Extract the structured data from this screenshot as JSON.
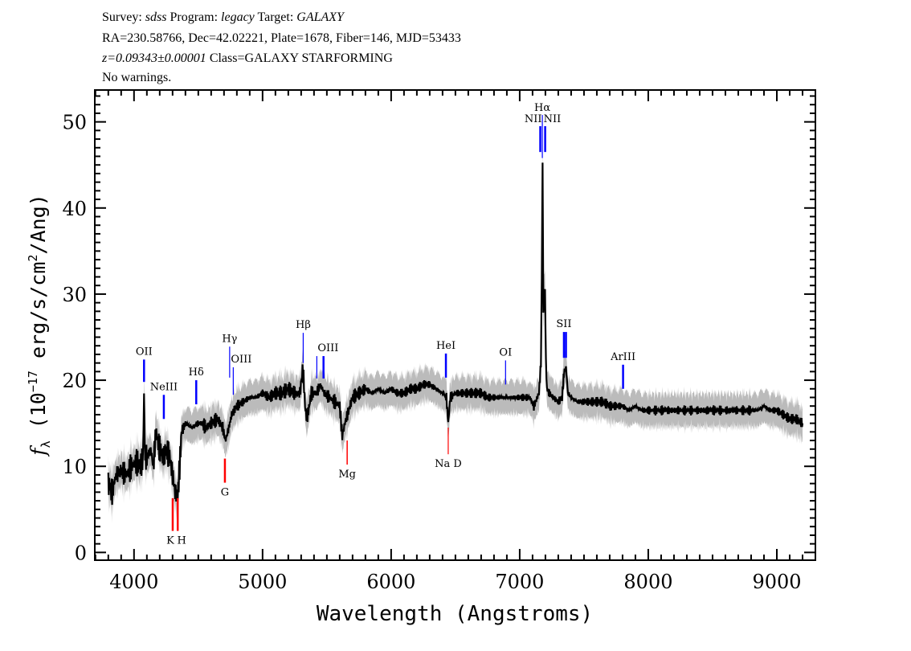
{
  "header": {
    "line1": {
      "a": "Survey: ",
      "b": "sdss",
      "c": " Program: ",
      "d": "legacy",
      "e": " Target: ",
      "f": "GALAXY"
    },
    "line2": "RA=230.58766, Dec=42.02221, Plate=1678, Fiber=146, MJD=53433",
    "line3": {
      "a": "z=0.09343±0.00001",
      "b": " Class=GALAXY STARFORMING"
    },
    "line4": "No warnings."
  },
  "chart_data": {
    "type": "line",
    "xlabel": "Wavelength (Angstroms)",
    "ylabel": "f_λ (10^-17 erg/s/cm^2/Ang)",
    "ylabel_parts": {
      "f": "f",
      "sub": "λ",
      "a": " (10",
      "exp1": "−17",
      "b": " erg/s/cm",
      "exp2": "2",
      "c": "/Ang)"
    },
    "xlim": [
      3695,
      9300
    ],
    "ylim": [
      -0.9,
      53.7
    ],
    "xticks": [
      4000,
      5000,
      6000,
      7000,
      8000,
      9000
    ],
    "yticks": [
      0,
      10,
      20,
      30,
      40,
      50
    ],
    "grid": false,
    "colors": {
      "flux": "#000000",
      "error_band": "#bbbbbb",
      "emission": "#0000ff",
      "absorption": "#ff0000",
      "sky": "#000000"
    },
    "flux_error": 1.4,
    "x": [
      3800,
      3830,
      3860,
      3900,
      3940,
      3980,
      4020,
      4050,
      4070,
      4078,
      4086,
      4100,
      4130,
      4150,
      4170,
      4200,
      4230,
      4250,
      4280,
      4300,
      4320,
      4340,
      4355,
      4370,
      4400,
      4450,
      4500,
      4530,
      4560,
      4600,
      4650,
      4690,
      4710,
      4730,
      4760,
      4800,
      4850,
      4900,
      4950,
      5000,
      5050,
      5100,
      5150,
      5200,
      5250,
      5290,
      5315,
      5330,
      5345,
      5380,
      5420,
      5450,
      5480,
      5520,
      5560,
      5600,
      5620,
      5640,
      5660,
      5700,
      5750,
      5800,
      5850,
      5900,
      5950,
      6000,
      6050,
      6100,
      6150,
      6200,
      6250,
      6300,
      6350,
      6400,
      6430,
      6444,
      6460,
      6500,
      6550,
      6600,
      6650,
      6700,
      6750,
      6800,
      6850,
      6900,
      6950,
      7000,
      7050,
      7080,
      7110,
      7150,
      7165,
      7172,
      7178,
      7184,
      7190,
      7197,
      7204,
      7212,
      7230,
      7260,
      7300,
      7330,
      7345,
      7360,
      7375,
      7400,
      7450,
      7500,
      7550,
      7600,
      7650,
      7700,
      7750,
      7800,
      7850,
      7900,
      7950,
      8000,
      8100,
      8200,
      8300,
      8400,
      8500,
      8600,
      8700,
      8800,
      8850,
      8900,
      8950,
      9000,
      9050,
      9100,
      9150,
      9200
    ],
    "flux": [
      8,
      7,
      9,
      9.5,
      9,
      10,
      10.5,
      10,
      11,
      18.5,
      11,
      11,
      12,
      10,
      14,
      12,
      11,
      12,
      11,
      9,
      7,
      6.5,
      10,
      14,
      15,
      14.5,
      15,
      15,
      14.5,
      15,
      15.5,
      14.5,
      13,
      14,
      16,
      17,
      17.5,
      18,
      18,
      18.5,
      18,
      18.5,
      18.5,
      19,
      18.5,
      18.5,
      21.5,
      17,
      15.5,
      18.5,
      18.5,
      19.5,
      18.5,
      18,
      17.5,
      17,
      13.5,
      15,
      16,
      18,
      18.5,
      19,
      18.5,
      19,
      18.5,
      19,
      18.5,
      18.5,
      19,
      19,
      19.5,
      19.5,
      19,
      18.5,
      18,
      15,
      18,
      18.5,
      18.5,
      18.5,
      18.5,
      18.5,
      18,
      18,
      18,
      18,
      18,
      18,
      18,
      18,
      17,
      18.5,
      22,
      32,
      45.5,
      28,
      30,
      30.5,
      22,
      19,
      18.5,
      18,
      17.5,
      18,
      21,
      21.5,
      18.5,
      18,
      17.5,
      17.5,
      17.5,
      17.5,
      17.5,
      17,
      17,
      17,
      16.5,
      17,
      16.5,
      16.5,
      16.5,
      16.5,
      16.5,
      16.5,
      16.5,
      16.5,
      16.5,
      16.5,
      16.5,
      17,
      16.5,
      16.5,
      16,
      15.5,
      15.5,
      15
    ],
    "lines": [
      {
        "name": "OII",
        "wave": 4078,
        "type": "emission",
        "y0": 19.8,
        "y1": 22.4,
        "width": 2.5
      },
      {
        "name": "NeIII",
        "wave": 4232,
        "type": "emission",
        "y0": 15.5,
        "y1": 18.3,
        "width": 2.5
      },
      {
        "name": "Hδ",
        "wave": 4484,
        "type": "emission",
        "y0": 17.2,
        "y1": 20,
        "width": 2.5
      },
      {
        "name": "Hγ",
        "wave": 4744,
        "type": "emission",
        "y0": 20.3,
        "y1": 23.9,
        "width": 1.2
      },
      {
        "name": "OIII",
        "wave": 4772,
        "type": "emission",
        "y0": 18.3,
        "y1": 21.5,
        "width": 1.2
      },
      {
        "name": "Hβ",
        "wave": 5316,
        "type": "sky",
        "y0": 22,
        "y1": 25.5,
        "width": 1.2
      },
      {
        "name": "OIII",
        "wave": 5422,
        "type": "emission",
        "y0": 20.2,
        "y1": 22.8,
        "width": 1.2
      },
      {
        "name": "",
        "wave": 5474,
        "type": "emission",
        "y0": 20.2,
        "y1": 22.8,
        "width": 2.5
      },
      {
        "name": "HeI",
        "wave": 6426,
        "type": "emission",
        "y0": 20.3,
        "y1": 23.1,
        "width": 2.5
      },
      {
        "name": "OI",
        "wave": 6890,
        "type": "sky",
        "y0": 19.5,
        "y1": 22.3,
        "width": 1.2
      },
      {
        "name": "NII",
        "wave": 7160,
        "type": "emission",
        "y0": 46.5,
        "y1": 49.5,
        "width": 2.5
      },
      {
        "name": "Hα",
        "wave": 7176,
        "type": "sky",
        "y0": 45.8,
        "y1": 50.8,
        "width": 1.2
      },
      {
        "name": "NII",
        "wave": 7198,
        "type": "emission",
        "y0": 46.5,
        "y1": 49.5,
        "width": 2.5
      },
      {
        "name": "SII",
        "wave": 7344,
        "type": "emission",
        "y0": 22.6,
        "y1": 25.6,
        "width": 2.5
      },
      {
        "name": "",
        "wave": 7360,
        "type": "emission",
        "y0": 22.6,
        "y1": 25.6,
        "width": 2.5
      },
      {
        "name": "ArIII",
        "wave": 7804,
        "type": "emission",
        "y0": 19,
        "y1": 21.8,
        "width": 2.5
      },
      {
        "name": "K",
        "wave": 4301,
        "type": "absorption",
        "y0": 2.5,
        "y1": 6.3,
        "width": 2.5
      },
      {
        "name": "H",
        "wave": 4340,
        "type": "absorption",
        "y0": 2.5,
        "y1": 6.3,
        "width": 2.5
      },
      {
        "name": "G",
        "wave": 4707,
        "type": "absorption",
        "y0": 8.1,
        "y1": 10.9,
        "width": 2.5
      },
      {
        "name": "Mg",
        "wave": 5658,
        "type": "absorption",
        "y0": 10.2,
        "y1": 13,
        "width": 1.5
      },
      {
        "name": "Na D",
        "wave": 6444,
        "type": "absorption",
        "y0": 11.4,
        "y1": 14.5,
        "width": 1.2
      }
    ]
  }
}
